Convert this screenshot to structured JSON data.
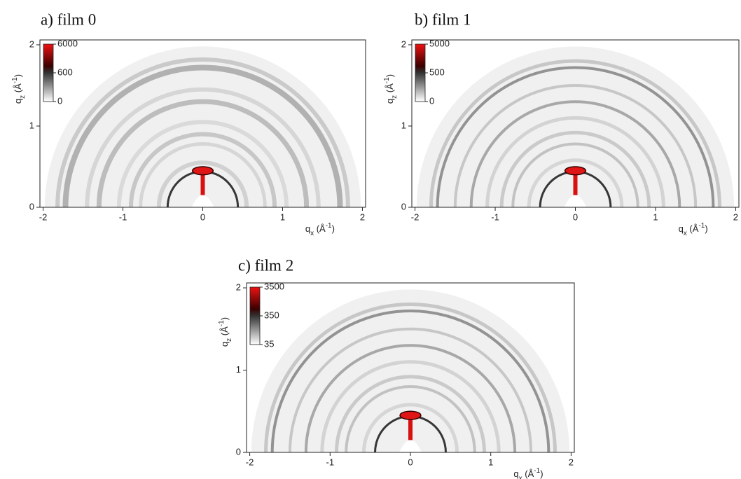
{
  "chart_data": [
    {
      "type": "heatmap",
      "title": "a) film 0",
      "xlabel": [
        "q",
        "x",
        " (Å",
        "-1",
        ")"
      ],
      "ylabel": [
        "q",
        "z",
        " (Å",
        "-1",
        ")"
      ],
      "xlim": [
        -2.04,
        2.04
      ],
      "xticks": [
        -2,
        -1,
        0,
        1,
        2
      ],
      "ylim": [
        0,
        2.06
      ],
      "yticks": [
        0,
        1,
        2
      ],
      "colorbar": {
        "ticks": [
          0,
          600,
          6000
        ]
      }
    },
    {
      "type": "heatmap",
      "title": "b) film 1",
      "xlabel": [
        "q",
        "x",
        " (Å",
        "-1",
        ")"
      ],
      "ylabel": [
        "q",
        "z",
        " (Å",
        "-1",
        ")"
      ],
      "xlim": [
        -2.04,
        2.04
      ],
      "xticks": [
        -2,
        -1,
        0,
        1,
        2
      ],
      "ylim": [
        0,
        2.06
      ],
      "yticks": [
        0,
        1,
        2
      ],
      "colorbar": {
        "ticks": [
          0,
          500,
          5000
        ]
      }
    },
    {
      "type": "heatmap",
      "title": "c) film 2",
      "xlabel": [
        "q",
        "x",
        " (Å",
        "-1",
        ")"
      ],
      "ylabel": [
        "q",
        "z",
        " (Å",
        "-1",
        ")"
      ],
      "xlim": [
        -2.04,
        2.04
      ],
      "xticks": [
        -2,
        -1,
        0,
        1,
        2
      ],
      "ylim": [
        0,
        2.06
      ],
      "yticks": [
        0,
        1,
        2
      ],
      "colorbar": {
        "ticks": [
          35,
          350,
          3500
        ]
      }
    }
  ]
}
